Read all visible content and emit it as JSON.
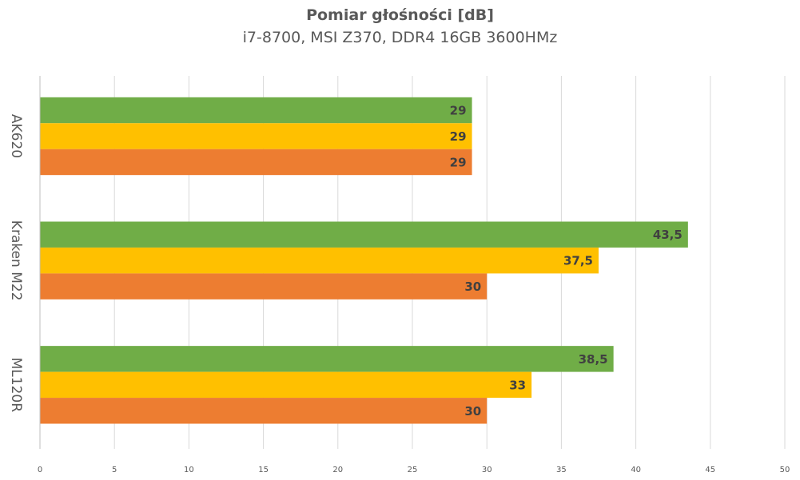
{
  "chart_data": {
    "type": "bar",
    "orientation": "horizontal",
    "title": "Pomiar głośności [dB]",
    "subtitle": "i7-8700, MSI Z370, DDR4 16GB 3600HMz",
    "categories": [
      "AK620",
      "Kraken M22",
      "ML120R"
    ],
    "series": [
      {
        "color": "#70ad47",
        "values": [
          29,
          43.5,
          38.5
        ],
        "labels": [
          "29",
          "43,5",
          "38,5"
        ]
      },
      {
        "color": "#ffc000",
        "values": [
          29,
          37.5,
          33
        ],
        "labels": [
          "29",
          "37,5",
          "33"
        ]
      },
      {
        "color": "#ed7d31",
        "values": [
          29,
          30,
          30
        ],
        "labels": [
          "29",
          "30",
          "30"
        ]
      }
    ],
    "xlim": [
      0,
      50
    ],
    "xticks": [
      0,
      5,
      10,
      15,
      20,
      25,
      30,
      35,
      40,
      45,
      50
    ],
    "grid": true,
    "legend": "none"
  }
}
